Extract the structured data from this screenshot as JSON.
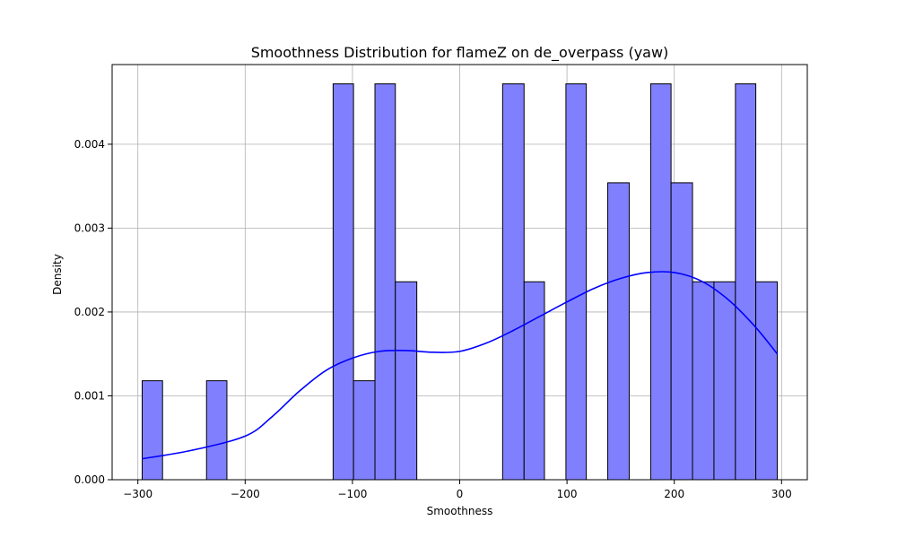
{
  "chart_data": {
    "type": "bar",
    "title": "Smoothness Distribution for flameZ on de_overpass (yaw)",
    "xlabel": "Smoothness",
    "ylabel": "Density",
    "xlim": [
      -324,
      324
    ],
    "ylim": [
      0,
      0.00495
    ],
    "xticks": [
      -300,
      -200,
      -100,
      0,
      100,
      200,
      300
    ],
    "xtick_labels": [
      "−300",
      "−200",
      "−100",
      "0",
      "100",
      "200",
      "300"
    ],
    "yticks": [
      0,
      0.001,
      0.002,
      0.003,
      0.004
    ],
    "ytick_labels": [
      "0.000",
      "0.001",
      "0.002",
      "0.003",
      "0.004"
    ],
    "grid": true,
    "bar_color": "#8080ff",
    "bar_edge_color": "#000000",
    "kde_color": "#0000ff",
    "bins": [
      {
        "x0": -296,
        "x1": -277,
        "density": 0.00118
      },
      {
        "x0": -236,
        "x1": -217,
        "density": 0.00118
      },
      {
        "x0": -118,
        "x1": -99,
        "density": 0.00472
      },
      {
        "x0": -99,
        "x1": -79,
        "density": 0.00118
      },
      {
        "x0": -79,
        "x1": -60,
        "density": 0.00472
      },
      {
        "x0": -60,
        "x1": -40,
        "density": 0.00236
      },
      {
        "x0": 40,
        "x1": 60,
        "density": 0.00472
      },
      {
        "x0": 60,
        "x1": 79,
        "density": 0.00236
      },
      {
        "x0": 99,
        "x1": 118,
        "density": 0.00472
      },
      {
        "x0": 138,
        "x1": 158,
        "density": 0.00354
      },
      {
        "x0": 178,
        "x1": 197,
        "density": 0.00472
      },
      {
        "x0": 197,
        "x1": 217,
        "density": 0.00354
      },
      {
        "x0": 217,
        "x1": 237,
        "density": 0.00236
      },
      {
        "x0": 237,
        "x1": 257,
        "density": 0.00236
      },
      {
        "x0": 257,
        "x1": 276,
        "density": 0.00472
      },
      {
        "x0": 276,
        "x1": 296,
        "density": 0.00236
      }
    ],
    "kde": {
      "x": [
        -296,
        -250,
        -200,
        -175,
        -150,
        -125,
        -100,
        -75,
        -50,
        -25,
        0,
        25,
        50,
        75,
        100,
        125,
        150,
        175,
        200,
        225,
        250,
        275,
        296
      ],
      "y": [
        0.00025,
        0.00035,
        0.00052,
        0.00075,
        0.00105,
        0.0013,
        0.00145,
        0.00153,
        0.00154,
        0.00152,
        0.00153,
        0.00163,
        0.00178,
        0.00195,
        0.00212,
        0.00228,
        0.0024,
        0.00247,
        0.00247,
        0.00237,
        0.00215,
        0.00183,
        0.0015
      ]
    }
  }
}
